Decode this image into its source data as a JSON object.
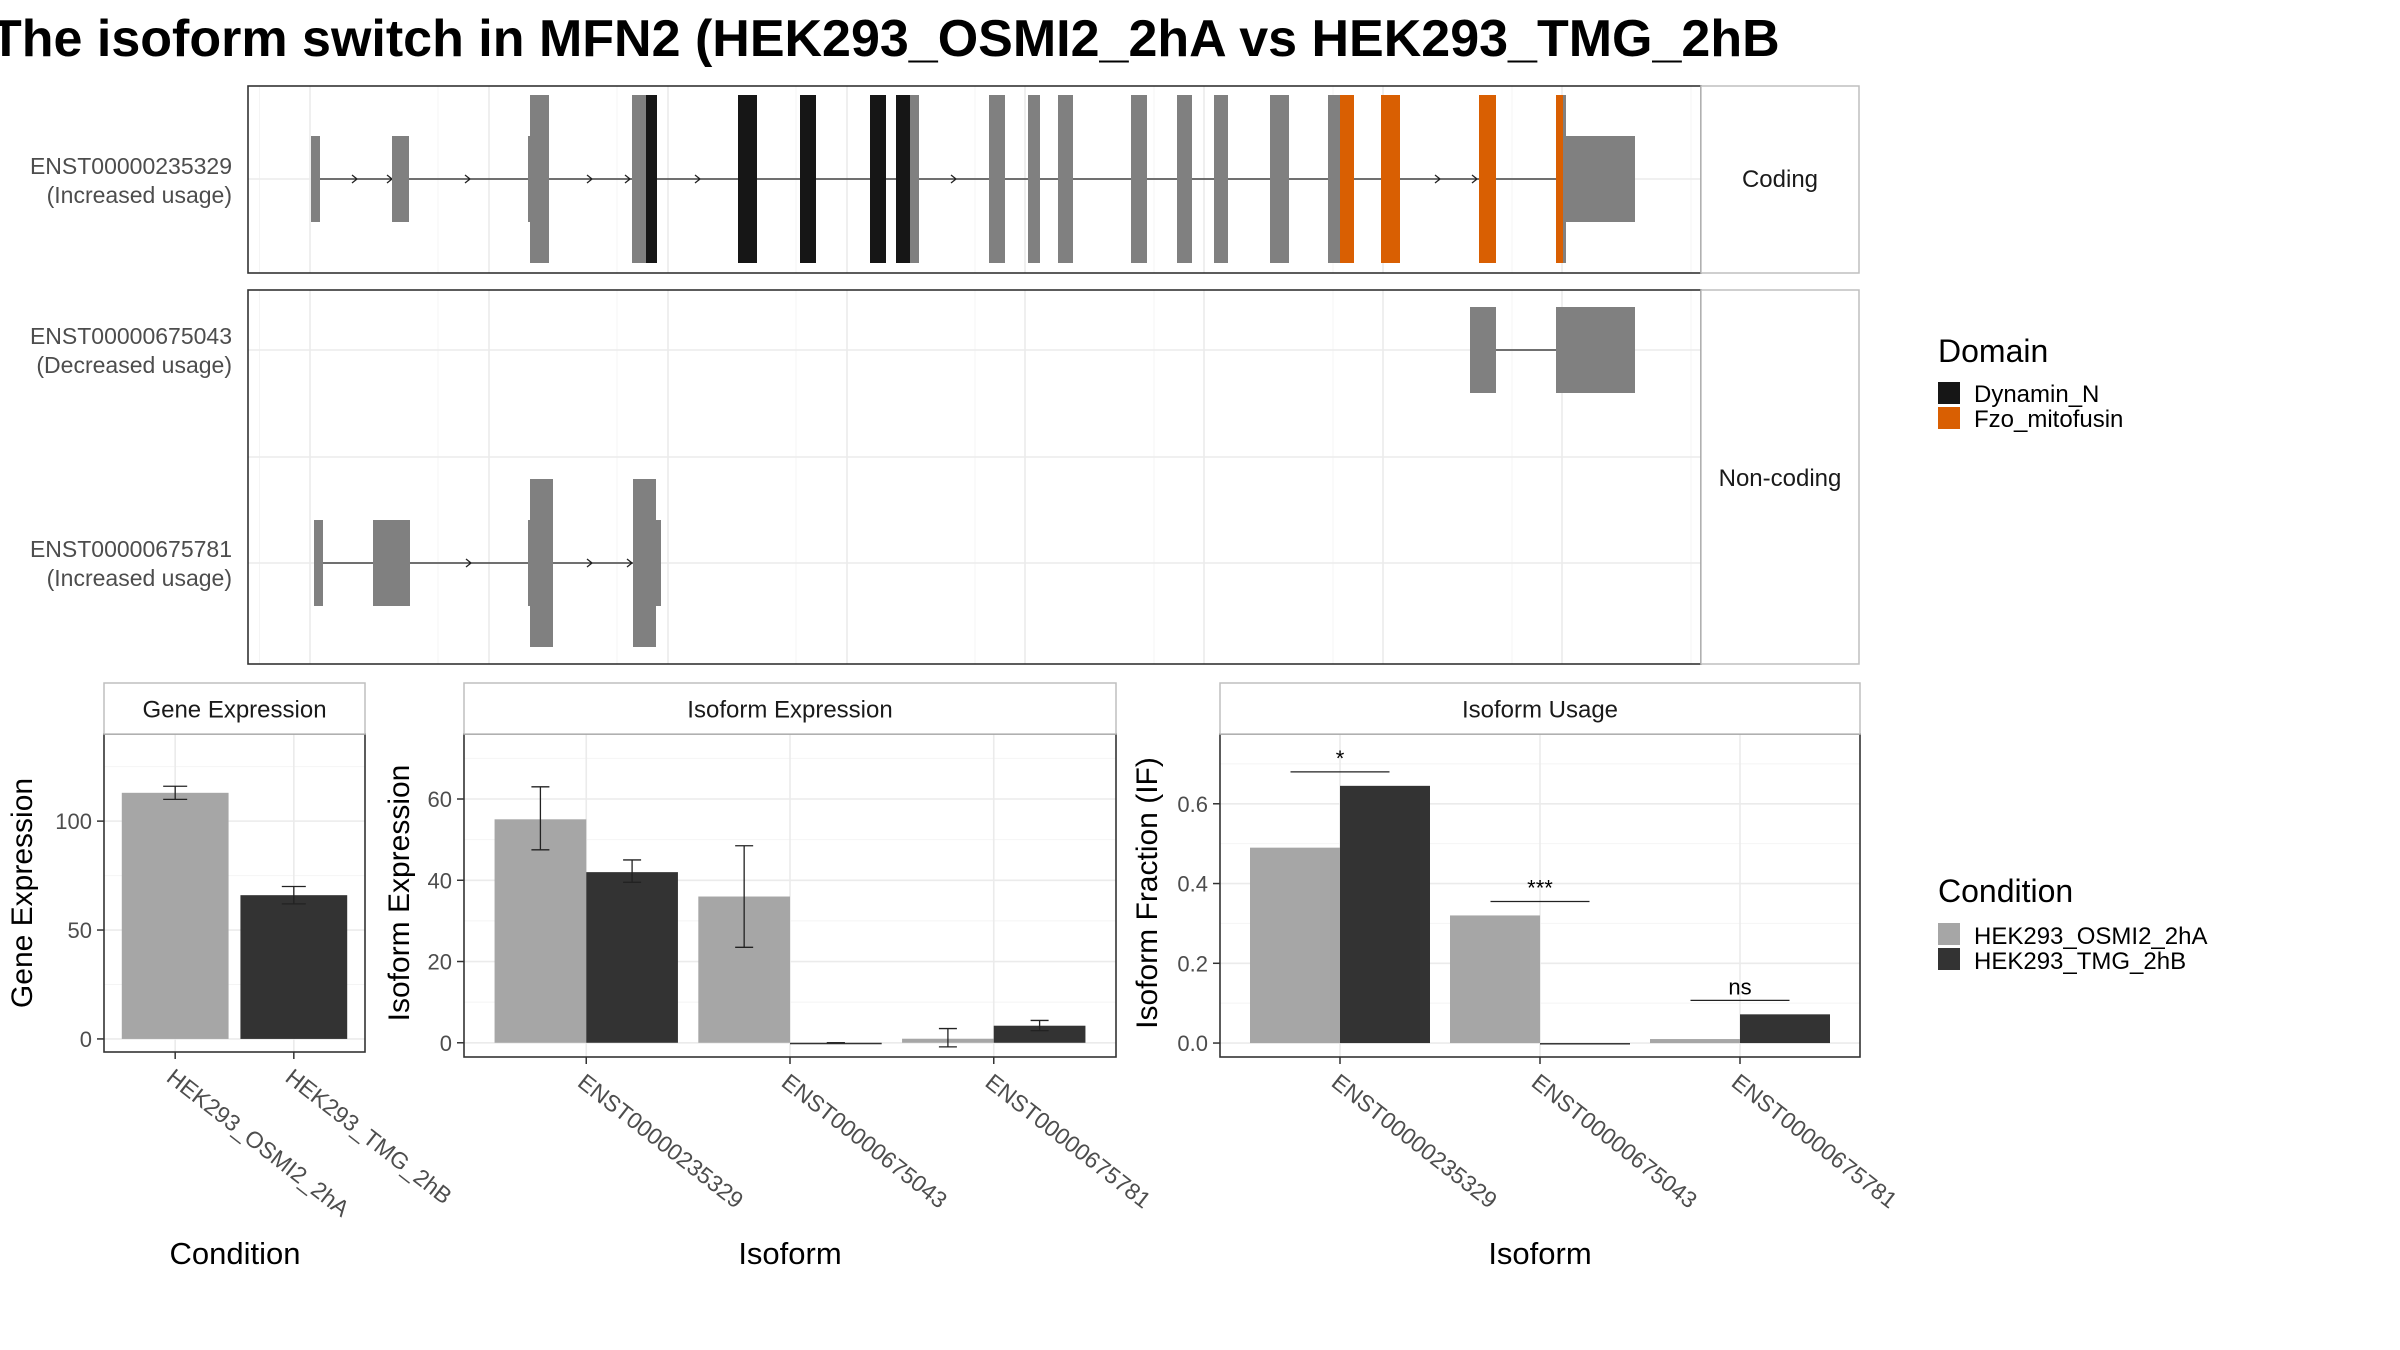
{
  "title": "The isoform switch in MFN2 (HEK293_OSMI2_2hA vs HEK293_TMG_2hB",
  "colors": {
    "exon": "#808080",
    "dynamin": "#161616",
    "fzo": "#D95F02",
    "cond1": "#A6A6A6",
    "cond2": "#333333",
    "grid": "#EBEBEB",
    "strip_border": "#BFBFBF"
  },
  "structure": {
    "facets": [
      "Coding",
      "Non-coding"
    ],
    "transcripts": [
      {
        "id": "ENST00000235329",
        "usage": "(Increased usage)",
        "facet": "Coding"
      },
      {
        "id": "ENST00000675043",
        "usage": "(Decreased usage)",
        "facet": "Non-coding"
      },
      {
        "id": "ENST00000675781",
        "usage": "(Increased usage)",
        "facet": "Non-coding"
      }
    ],
    "legend_title": "Domain",
    "legend_items": [
      {
        "label": "Dynamin_N",
        "color": "#161616"
      },
      {
        "label": "Fzo_mitofusin",
        "color": "#D95F02"
      }
    ]
  },
  "chart_data": [
    {
      "type": "bar",
      "title": "Gene Expression",
      "xlabel": "Condition",
      "ylabel": "Gene Expression",
      "categories": [
        "HEK293_OSMI2_2hA",
        "HEK293_TMG_2hB"
      ],
      "values": [
        113,
        66
      ],
      "errors": [
        [
          110,
          116
        ],
        [
          62,
          70
        ]
      ],
      "ylim": [
        -6,
        140
      ],
      "yticks": [
        0,
        50,
        100
      ]
    },
    {
      "type": "bar",
      "title": "Isoform Expression",
      "xlabel": "Isoform",
      "ylabel": "Isoform Expression",
      "categories": [
        "ENST00000235329",
        "ENST00000675043",
        "ENST00000675781"
      ],
      "series": [
        {
          "name": "HEK293_OSMI2_2hA",
          "values": [
            55,
            36,
            1
          ],
          "errors": [
            [
              47.5,
              63
            ],
            [
              23.5,
              48.5
            ],
            [
              -1,
              3.5
            ]
          ]
        },
        {
          "name": "HEK293_TMG_2hB",
          "values": [
            42,
            0,
            4.2
          ],
          "errors": [
            [
              39.5,
              45
            ],
            [
              0,
              0
            ],
            [
              3,
              5.5
            ]
          ]
        }
      ],
      "ylim": [
        -3.5,
        76
      ],
      "yticks": [
        0,
        20,
        40,
        60
      ]
    },
    {
      "type": "bar",
      "title": "Isoform Usage",
      "xlabel": "Isoform",
      "ylabel": "Isoform Fraction (IF)",
      "categories": [
        "ENST00000235329",
        "ENST00000675043",
        "ENST00000675781"
      ],
      "series": [
        {
          "name": "HEK293_OSMI2_2hA",
          "values": [
            0.49,
            0.32,
            0.01
          ]
        },
        {
          "name": "HEK293_TMG_2hB",
          "values": [
            0.645,
            0.0,
            0.072
          ]
        }
      ],
      "significance": [
        "*",
        "***",
        "ns"
      ],
      "ylim": [
        -0.035,
        0.775
      ],
      "yticks": [
        0.0,
        0.2,
        0.4,
        0.6
      ]
    }
  ],
  "condition_legend": {
    "title": "Condition",
    "items": [
      {
        "label": "HEK293_OSMI2_2hA",
        "color": "#A6A6A6"
      },
      {
        "label": "HEK293_TMG_2hB",
        "color": "#333333"
      }
    ]
  }
}
